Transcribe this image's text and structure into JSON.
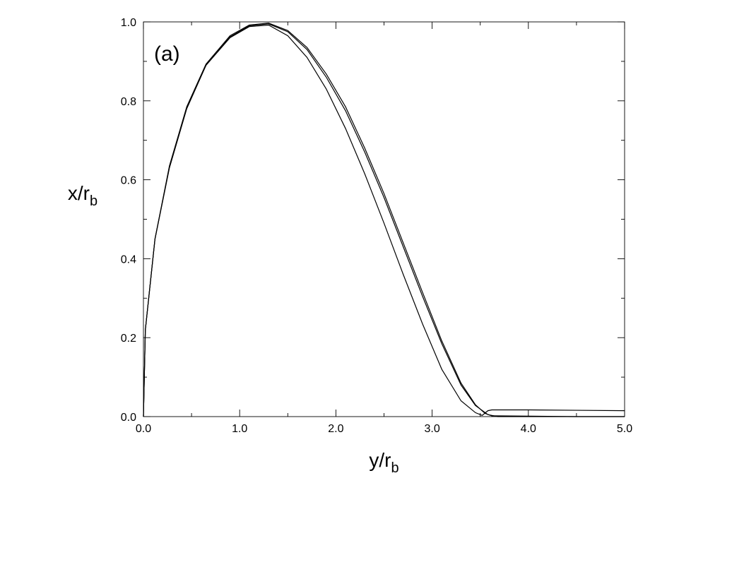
{
  "chart_data": {
    "type": "line",
    "panel_label": "(a)",
    "xlabel": {
      "main": "y/r",
      "sub": "b"
    },
    "ylabel": {
      "main": "x/r",
      "sub": "b"
    },
    "xlim": [
      0.0,
      5.0
    ],
    "ylim": [
      0.0,
      1.0
    ],
    "xticks": [
      {
        "value": 0.0,
        "label": "0.0"
      },
      {
        "value": 1.0,
        "label": "1.0"
      },
      {
        "value": 2.0,
        "label": "2.0"
      },
      {
        "value": 3.0,
        "label": "3.0"
      },
      {
        "value": 4.0,
        "label": "4.0"
      },
      {
        "value": 5.0,
        "label": "5.0"
      }
    ],
    "yticks": [
      {
        "value": 0.0,
        "label": "0.0"
      },
      {
        "value": 0.2,
        "label": "0.2"
      },
      {
        "value": 0.4,
        "label": "0.4"
      },
      {
        "value": 0.6,
        "label": "0.6"
      },
      {
        "value": 0.8,
        "label": "0.8"
      },
      {
        "value": 1.0,
        "label": "1.0"
      }
    ],
    "grid": false,
    "legend": "none",
    "series": [
      {
        "x": [
          0.0,
          0.02,
          0.12,
          0.27,
          0.45,
          0.65,
          0.9,
          1.1,
          1.3,
          1.5,
          1.7,
          1.9,
          2.1,
          2.3,
          2.5,
          2.7,
          2.9,
          3.1,
          3.3,
          3.45,
          3.58,
          3.68,
          4.5,
          5.0
        ],
        "y": [
          0.0,
          0.22,
          0.45,
          0.63,
          0.78,
          0.89,
          0.962,
          0.99,
          0.995,
          0.975,
          0.93,
          0.86,
          0.775,
          0.67,
          0.555,
          0.43,
          0.305,
          0.185,
          0.08,
          0.028,
          0.005,
          0.0,
          0.0,
          0.0
        ]
      },
      {
        "x": [
          0.0,
          0.02,
          0.12,
          0.27,
          0.45,
          0.65,
          0.9,
          1.1,
          1.3,
          1.5,
          1.7,
          1.9,
          2.1,
          2.3,
          2.5,
          2.7,
          2.9,
          3.1,
          3.3,
          3.45,
          3.55,
          3.62,
          4.5,
          5.0
        ],
        "y": [
          0.0,
          0.22,
          0.45,
          0.635,
          0.785,
          0.893,
          0.965,
          0.992,
          0.997,
          0.978,
          0.935,
          0.868,
          0.785,
          0.68,
          0.565,
          0.44,
          0.315,
          0.192,
          0.085,
          0.03,
          0.008,
          0.002,
          0.0,
          0.0
        ]
      },
      {
        "x": [
          0.0,
          0.02,
          0.12,
          0.27,
          0.45,
          0.65,
          0.9,
          1.1,
          1.3,
          1.5,
          1.7,
          1.9,
          2.1,
          2.3,
          2.5,
          2.7,
          2.9,
          3.1,
          3.3,
          3.45,
          3.52,
          3.58,
          3.62,
          4.0,
          4.5,
          5.0
        ],
        "y": [
          0.0,
          0.22,
          0.45,
          0.632,
          0.782,
          0.89,
          0.96,
          0.988,
          0.992,
          0.965,
          0.91,
          0.83,
          0.73,
          0.615,
          0.49,
          0.36,
          0.235,
          0.12,
          0.04,
          0.01,
          0.003,
          0.015,
          0.017,
          0.017,
          0.016,
          0.015
        ]
      }
    ]
  }
}
